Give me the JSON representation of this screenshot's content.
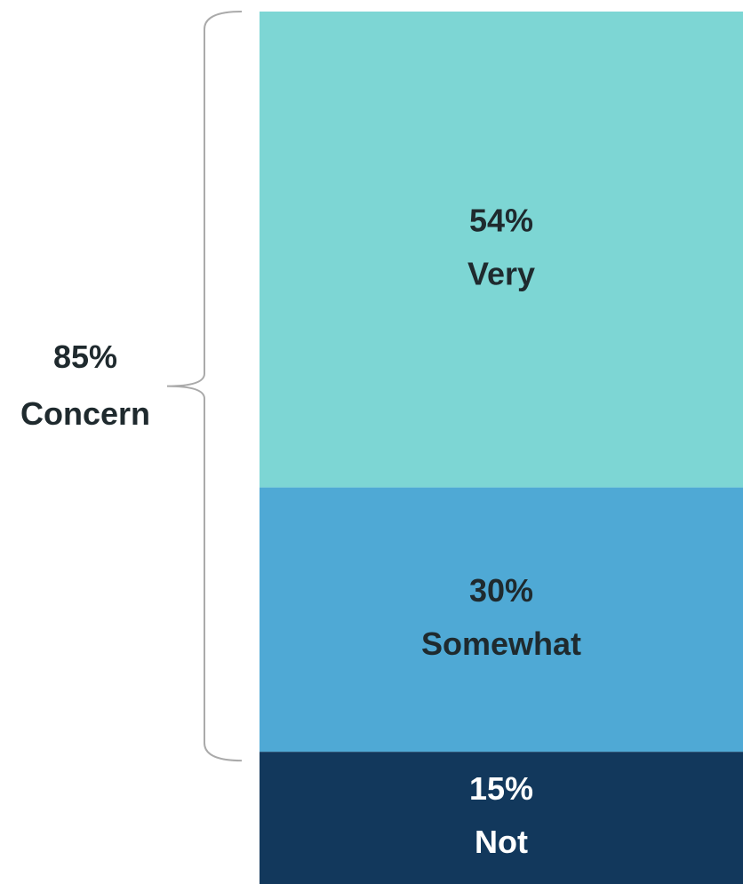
{
  "chart_data": {
    "type": "bar",
    "stacked": true,
    "series": [
      {
        "name": "Very",
        "color": "#7dd6d4",
        "text_color": "#1f2a2e",
        "values": [
          54
        ],
        "value_labels": [
          "54%"
        ]
      },
      {
        "name": "Somewhat",
        "color": "#4fa9d5",
        "text_color": "#1f2a2e",
        "values": [
          30
        ],
        "value_labels": [
          "30%"
        ]
      },
      {
        "name": "Not",
        "color": "#12385c",
        "text_color": "#ffffff",
        "values": [
          15
        ],
        "value_labels": [
          "15%"
        ]
      }
    ],
    "bracket": {
      "value": 85,
      "label": "85%",
      "text": "Concern",
      "color": "#aaaaaa",
      "text_color": "#1f2a2e"
    }
  }
}
